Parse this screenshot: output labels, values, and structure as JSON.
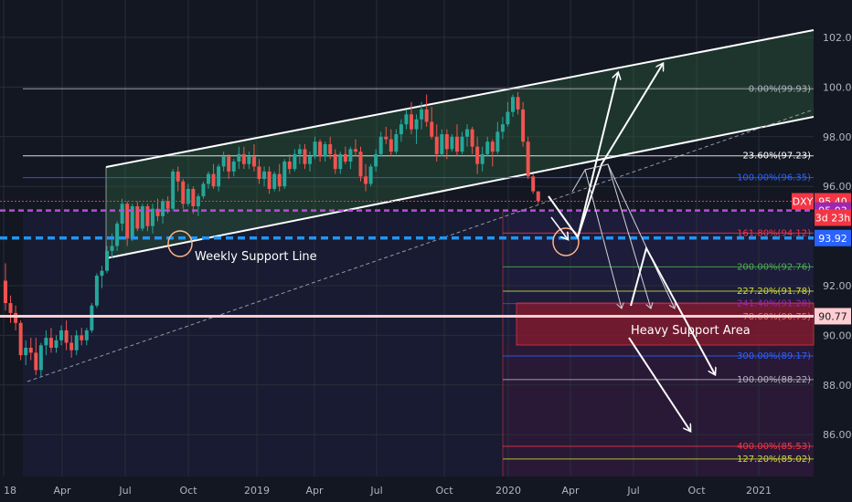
{
  "chart_data": {
    "type": "candlestick",
    "symbol": "DXY",
    "countdown": "3d 23h",
    "ylim": [
      84.5,
      102.8
    ],
    "y_ticks": [
      102.0,
      100.0,
      98.0,
      96.0,
      92.0,
      90.0,
      88.0,
      86.0
    ],
    "y_tick_labels": [
      "102.00",
      "100.00",
      "98.00",
      "96.00",
      "92.00",
      "90.00",
      "88.00",
      "86.00"
    ],
    "x_tick_labels": [
      "18",
      "Apr",
      "Jul",
      "Oct",
      "2019",
      "Apr",
      "Jul",
      "Oct",
      "2020",
      "Apr",
      "Jul",
      "Oct",
      "2021"
    ],
    "price_badges": [
      {
        "label": "DXY",
        "value": "95.40",
        "price": 95.4,
        "color": "#f23645"
      },
      {
        "label": "",
        "value": "95.03",
        "price": 95.03,
        "color": "#9c27b0"
      },
      {
        "label": "",
        "value": "93.92",
        "price": 93.92,
        "color": "#2962ff"
      },
      {
        "label": "",
        "value": "90.77",
        "price": 90.77,
        "color": "#ffcdd2"
      }
    ],
    "fib_levels": [
      {
        "label": "0.00%(99.93)",
        "price": 99.93,
        "color": "#b2b5be"
      },
      {
        "label": "23.60%(97.23)",
        "price": 97.23,
        "color": "#ffffff"
      },
      {
        "label": "100.00%(96.35)",
        "price": 96.35,
        "color": "#2962ff"
      },
      {
        "label": "161.80%(94.12)",
        "price": 94.12,
        "color": "#f23645"
      },
      {
        "label": "200.00%(92.76)",
        "price": 92.76,
        "color": "#4caf50"
      },
      {
        "label": "227.20%(91.78)",
        "price": 91.78,
        "color": "#cddc39"
      },
      {
        "label": "241.40%(91.28)",
        "price": 91.28,
        "color": "#9c27b0"
      },
      {
        "label": "78.60%(90.75)",
        "price": 90.75,
        "color": "#e57373"
      },
      {
        "label": "300.00%(89.17)",
        "price": 89.17,
        "color": "#2962ff"
      },
      {
        "label": "100.00%(88.22)",
        "price": 88.22,
        "color": "#b2b5be"
      },
      {
        "label": "400.00%(85.53)",
        "price": 85.53,
        "color": "#f23645"
      },
      {
        "label": "127.20%(85.02)",
        "price": 85.02,
        "color": "#cddc39"
      }
    ],
    "annotations": [
      "Weekly Support Line",
      "Heavy Support Area"
    ],
    "candles": [
      [
        92.2,
        92.9,
        91.0,
        91.3
      ],
      [
        91.3,
        91.6,
        90.5,
        90.9
      ],
      [
        90.9,
        91.2,
        90.2,
        90.5
      ],
      [
        90.5,
        90.6,
        89.0,
        89.2
      ],
      [
        89.2,
        89.8,
        88.8,
        89.5
      ],
      [
        89.5,
        89.9,
        89.0,
        89.3
      ],
      [
        89.3,
        89.9,
        88.4,
        88.6
      ],
      [
        88.6,
        89.7,
        88.3,
        89.6
      ],
      [
        89.6,
        90.2,
        89.2,
        89.9
      ],
      [
        89.9,
        90.3,
        89.3,
        89.5
      ],
      [
        89.5,
        90.0,
        89.3,
        89.8
      ],
      [
        89.8,
        90.4,
        89.6,
        90.2
      ],
      [
        90.2,
        90.6,
        89.4,
        89.7
      ],
      [
        89.7,
        90.0,
        89.1,
        89.4
      ],
      [
        89.4,
        90.2,
        89.2,
        90.0
      ],
      [
        90.0,
        90.3,
        89.6,
        89.8
      ],
      [
        89.8,
        90.3,
        89.6,
        90.2
      ],
      [
        90.2,
        91.3,
        90.1,
        91.2
      ],
      [
        91.2,
        92.5,
        91.1,
        92.4
      ],
      [
        92.4,
        92.8,
        91.9,
        92.6
      ],
      [
        92.6,
        93.6,
        92.5,
        93.4
      ],
      [
        93.4,
        94.1,
        93.1,
        93.6
      ],
      [
        93.6,
        94.6,
        93.4,
        94.5
      ],
      [
        94.5,
        95.5,
        94.2,
        95.3
      ],
      [
        95.3,
        95.4,
        93.6,
        93.9
      ],
      [
        93.9,
        95.3,
        93.8,
        95.2
      ],
      [
        95.2,
        95.4,
        94.2,
        94.3
      ],
      [
        94.3,
        95.3,
        94.2,
        95.2
      ],
      [
        95.2,
        95.3,
        94.2,
        94.4
      ],
      [
        94.4,
        95.3,
        94.1,
        95.1
      ],
      [
        95.1,
        95.5,
        94.6,
        94.8
      ],
      [
        94.8,
        95.5,
        94.5,
        95.4
      ],
      [
        95.4,
        95.6,
        94.9,
        95.1
      ],
      [
        95.1,
        96.7,
        95.0,
        96.6
      ],
      [
        96.6,
        96.8,
        95.8,
        96.2
      ],
      [
        96.2,
        96.3,
        95.1,
        95.3
      ],
      [
        95.3,
        96.1,
        95.2,
        95.9
      ],
      [
        95.9,
        96.0,
        94.9,
        95.2
      ],
      [
        95.2,
        95.7,
        94.8,
        95.6
      ],
      [
        95.6,
        96.2,
        95.5,
        96.1
      ],
      [
        96.1,
        96.6,
        95.9,
        96.5
      ],
      [
        96.5,
        96.9,
        95.9,
        96.0
      ],
      [
        96.0,
        96.9,
        95.8,
        96.8
      ],
      [
        96.8,
        97.4,
        96.6,
        97.2
      ],
      [
        97.2,
        97.3,
        96.3,
        96.6
      ],
      [
        96.6,
        97.1,
        96.4,
        97.0
      ],
      [
        97.0,
        97.6,
        96.7,
        97.3
      ],
      [
        97.3,
        97.6,
        96.7,
        96.9
      ],
      [
        96.9,
        97.4,
        96.7,
        97.2
      ],
      [
        97.2,
        97.7,
        96.6,
        96.8
      ],
      [
        96.8,
        97.1,
        96.1,
        96.3
      ],
      [
        96.3,
        96.8,
        96.0,
        96.6
      ],
      [
        96.6,
        96.8,
        95.7,
        95.9
      ],
      [
        95.9,
        96.6,
        95.8,
        96.5
      ],
      [
        96.5,
        96.9,
        95.8,
        96.0
      ],
      [
        96.0,
        97.1,
        95.9,
        97.0
      ],
      [
        97.0,
        97.3,
        96.5,
        96.7
      ],
      [
        96.7,
        97.5,
        96.6,
        97.3
      ],
      [
        97.3,
        97.7,
        96.9,
        97.5
      ],
      [
        97.5,
        97.7,
        96.7,
        96.9
      ],
      [
        96.9,
        97.4,
        96.6,
        97.2
      ],
      [
        97.2,
        98.0,
        97.1,
        97.8
      ],
      [
        97.8,
        97.9,
        97.0,
        97.2
      ],
      [
        97.2,
        97.8,
        97.0,
        97.7
      ],
      [
        97.7,
        98.0,
        97.1,
        97.3
      ],
      [
        97.3,
        97.5,
        96.5,
        96.7
      ],
      [
        96.7,
        97.4,
        96.5,
        97.3
      ],
      [
        97.3,
        97.6,
        96.9,
        97.0
      ],
      [
        97.0,
        97.6,
        96.7,
        97.5
      ],
      [
        97.5,
        97.9,
        97.2,
        97.4
      ],
      [
        97.4,
        97.6,
        96.2,
        96.4
      ],
      [
        96.4,
        96.9,
        95.8,
        96.1
      ],
      [
        96.1,
        96.9,
        96.0,
        96.8
      ],
      [
        96.8,
        97.5,
        96.6,
        97.3
      ],
      [
        97.3,
        98.2,
        97.2,
        98.0
      ],
      [
        98.0,
        98.4,
        97.7,
        97.9
      ],
      [
        97.9,
        98.3,
        97.2,
        97.4
      ],
      [
        97.4,
        98.3,
        97.3,
        98.1
      ],
      [
        98.1,
        98.7,
        97.8,
        98.5
      ],
      [
        98.5,
        99.1,
        98.3,
        98.9
      ],
      [
        98.9,
        99.4,
        98.1,
        98.3
      ],
      [
        98.3,
        98.9,
        97.7,
        98.7
      ],
      [
        98.7,
        99.4,
        98.3,
        99.1
      ],
      [
        99.1,
        99.7,
        98.4,
        98.6
      ],
      [
        98.6,
        99.2,
        97.9,
        98.0
      ],
      [
        98.0,
        98.5,
        97.0,
        97.3
      ],
      [
        97.3,
        98.3,
        97.2,
        98.1
      ],
      [
        98.1,
        98.3,
        97.1,
        97.5
      ],
      [
        97.5,
        98.1,
        97.4,
        98.0
      ],
      [
        98.0,
        98.5,
        97.2,
        97.4
      ],
      [
        97.4,
        98.2,
        97.3,
        98.0
      ],
      [
        98.0,
        98.5,
        97.6,
        98.3
      ],
      [
        98.3,
        98.4,
        97.3,
        97.6
      ],
      [
        97.6,
        98.0,
        96.5,
        96.9
      ],
      [
        96.9,
        97.6,
        96.6,
        97.3
      ],
      [
        97.3,
        98.0,
        97.2,
        97.8
      ],
      [
        97.8,
        97.9,
        96.8,
        97.4
      ],
      [
        97.4,
        98.6,
        97.3,
        98.2
      ],
      [
        98.2,
        98.8,
        97.9,
        98.5
      ],
      [
        98.5,
        99.4,
        98.4,
        99.0
      ],
      [
        99.0,
        99.7,
        98.8,
        99.6
      ],
      [
        99.6,
        99.8,
        98.9,
        99.1
      ],
      [
        99.1,
        99.4,
        97.6,
        97.8
      ],
      [
        97.8,
        98.0,
        96.3,
        96.4
      ],
      [
        96.4,
        96.5,
        95.7,
        95.8
      ],
      [
        95.8,
        95.8,
        95.3,
        95.4
      ]
    ]
  }
}
